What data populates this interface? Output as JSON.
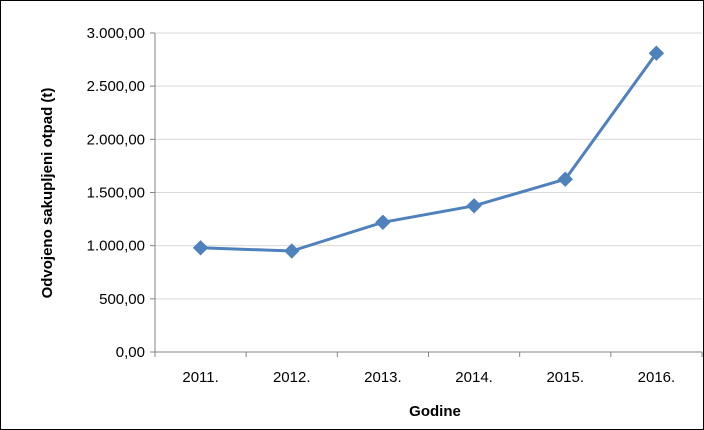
{
  "chart_data": {
    "type": "line",
    "title": "",
    "xlabel": "Godine",
    "ylabel": "Odvojeno sakupljeni otpad (t)",
    "categories": [
      "2011.",
      "2012.",
      "2013.",
      "2014.",
      "2015.",
      "2016."
    ],
    "series": [
      {
        "values": [
          980,
          950,
          1220,
          1375,
          1625,
          2810
        ]
      }
    ],
    "ylim": [
      0,
      3000
    ],
    "yticks": [
      0,
      500,
      1000,
      1500,
      2000,
      2500,
      3000
    ],
    "ytick_labels": [
      "0,00",
      "500,00",
      "1.000,00",
      "1.500,00",
      "2.000,00",
      "2.500,00",
      "3.000,00"
    ],
    "grid": "horizontal",
    "legend": "none",
    "line_color": "#4F81BD",
    "grid_color": "#D9D9D9",
    "axis_color": "#868686"
  }
}
